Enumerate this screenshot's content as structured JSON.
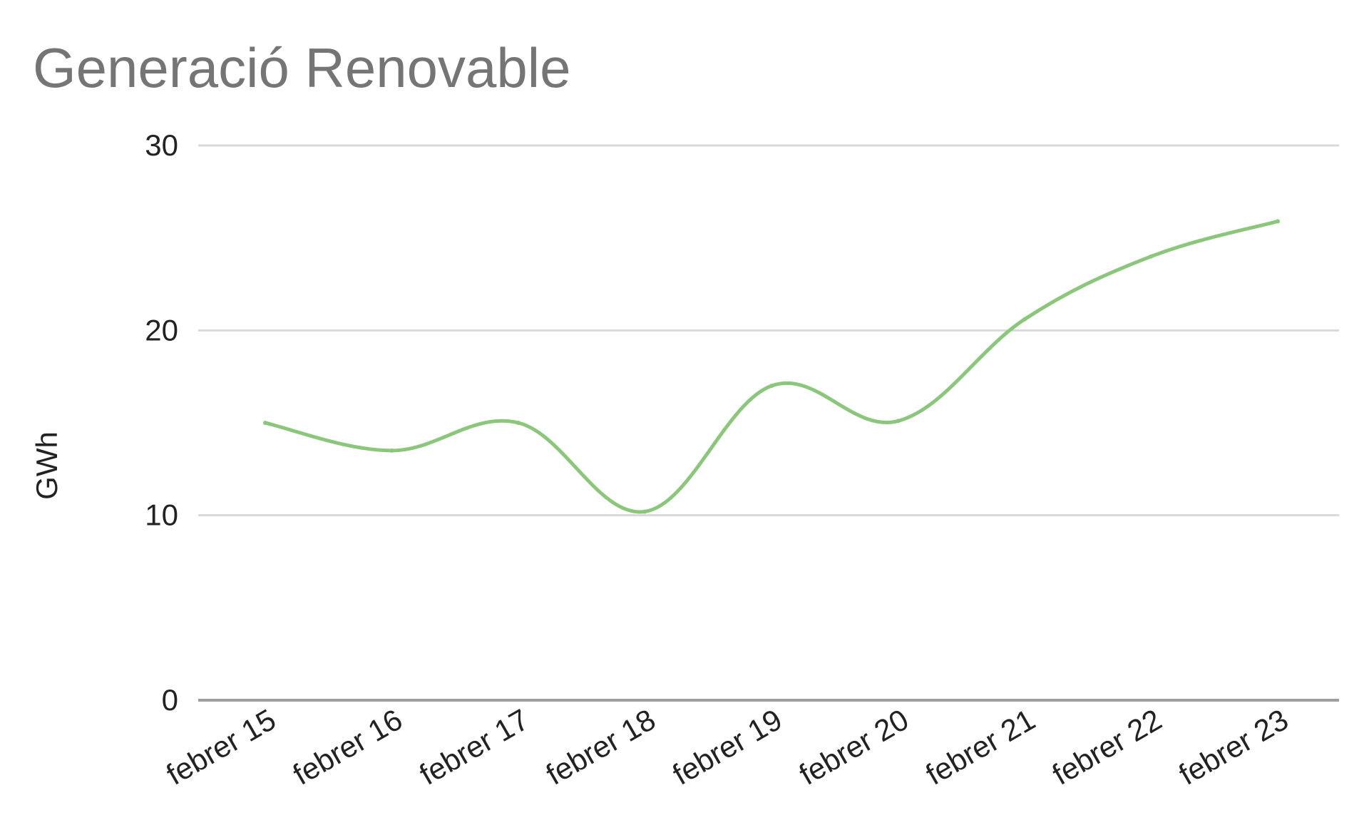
{
  "chart_data": {
    "type": "line",
    "title": "Generació Renovable",
    "xlabel": "",
    "ylabel": "GWh",
    "categories": [
      "febrer 15",
      "febrer 16",
      "febrer 17",
      "febrer 18",
      "febrer 19",
      "febrer 20",
      "febrer 21",
      "febrer 22",
      "febrer 23"
    ],
    "series": [
      {
        "values": [
          15,
          13.5,
          15,
          10.2,
          17,
          15.1,
          20.6,
          24,
          25.9
        ]
      }
    ],
    "ylim": [
      0,
      30
    ],
    "yticks": [
      "0",
      "10",
      "20",
      "30"
    ],
    "grid": true,
    "legend": "none",
    "colors": {
      "line": "#8bc77a",
      "grid": "#d9d9d9",
      "baseline": "#9e9e9e",
      "title": "#757575",
      "text": "#222222"
    }
  }
}
